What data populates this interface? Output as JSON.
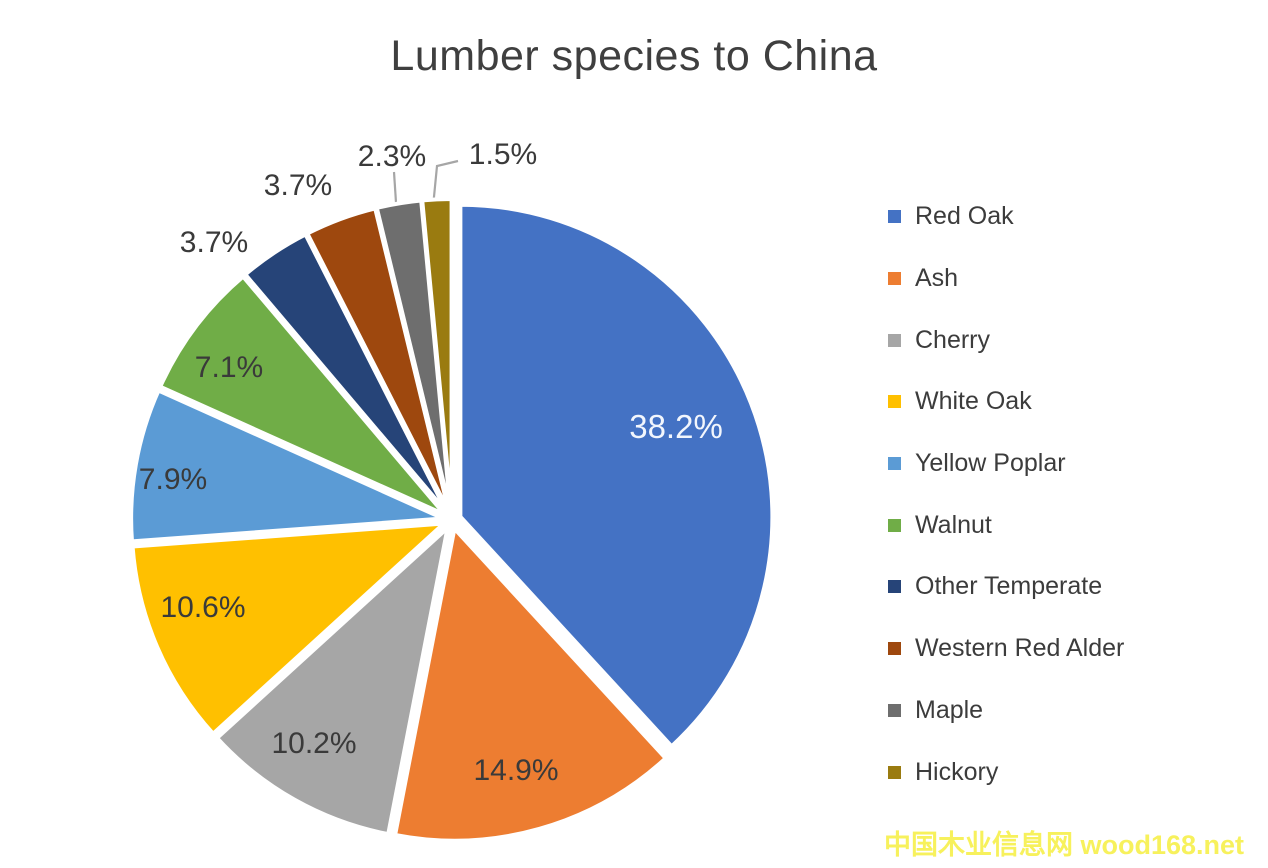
{
  "title": "Lumber species to China",
  "watermark": {
    "text": "中国木业信息网 wood168.net",
    "color": "#f7f15c"
  },
  "chart_data": {
    "type": "pie",
    "title": "Lumber species to China",
    "unit": "percent",
    "legend_position": "right",
    "start_angle_deg": 0,
    "direction": "clockwise",
    "exploded": true,
    "categories": [
      "Red Oak",
      "Ash",
      "Cherry",
      "White Oak",
      "Yellow Poplar",
      "Walnut",
      "Other Temperate",
      "Western Red Alder",
      "Maple",
      "Hickory"
    ],
    "values": [
      38.2,
      14.9,
      10.2,
      10.6,
      7.9,
      7.1,
      3.7,
      3.7,
      2.3,
      1.5
    ],
    "slices": [
      {
        "label": "Red Oak",
        "value": 38.2,
        "pct_text": "38.2%",
        "color": "#4472c4"
      },
      {
        "label": "Ash",
        "value": 14.9,
        "pct_text": "14.9%",
        "color": "#ed7d31"
      },
      {
        "label": "Cherry",
        "value": 10.2,
        "pct_text": "10.2%",
        "color": "#a6a6a6"
      },
      {
        "label": "White Oak",
        "value": 10.6,
        "pct_text": "10.6%",
        "color": "#ffc000"
      },
      {
        "label": "Yellow Poplar",
        "value": 7.9,
        "pct_text": "7.9%",
        "color": "#5b9bd5"
      },
      {
        "label": "Walnut",
        "value": 7.1,
        "pct_text": "7.1%",
        "color": "#70ad47"
      },
      {
        "label": "Other Temperate",
        "value": 3.7,
        "pct_text": "3.7%",
        "color": "#264478"
      },
      {
        "label": "Western Red Alder",
        "value": 3.7,
        "pct_text": "3.7%",
        "color": "#9e480e"
      },
      {
        "label": "Maple",
        "value": 2.3,
        "pct_text": "2.3%",
        "color": "#6e6e6e"
      },
      {
        "label": "Hickory",
        "value": 1.5,
        "pct_text": "1.5%",
        "color": "#9a7b10"
      }
    ]
  }
}
